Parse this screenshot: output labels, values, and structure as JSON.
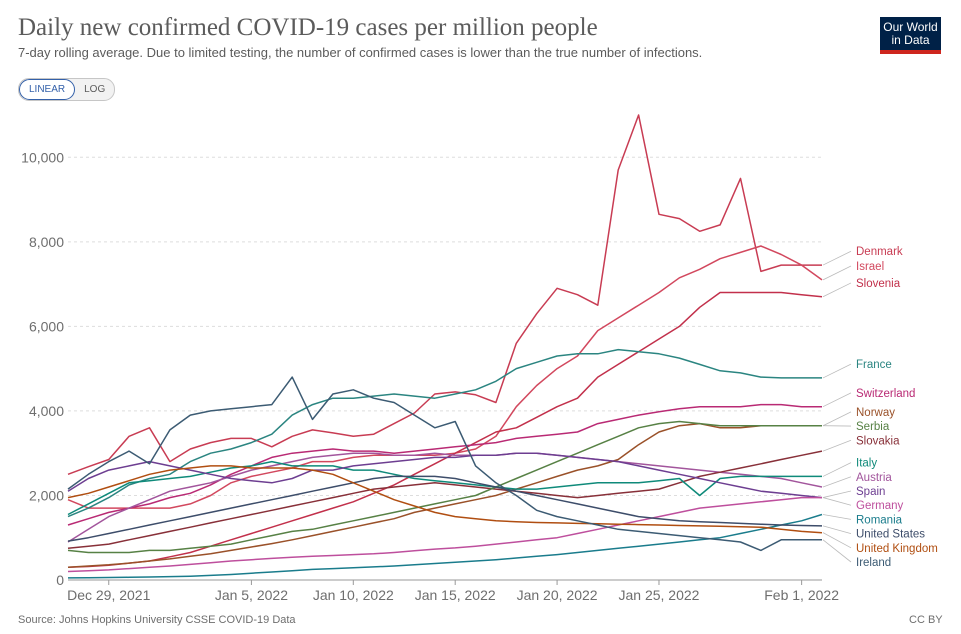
{
  "header": {
    "title": "Daily new confirmed COVID-19 cases per million people",
    "subtitle": "7-day rolling average. Due to limited testing, the number of confirmed cases is lower than the true number of infections.",
    "logo_line1": "Our World",
    "logo_line2": "in Data"
  },
  "scale_toggle": {
    "linear_label": "LINEAR",
    "log_label": "LOG",
    "selected": "LINEAR"
  },
  "footer": {
    "source": "Source: Johns Hopkins University CSSE COVID-19 Data",
    "license": "CC BY"
  },
  "chart_data": {
    "type": "line",
    "title": "Daily new confirmed COVID-19 cases per million people",
    "subtitle": "7-day rolling average. Due to limited testing, the number of confirmed cases is lower than the true number of infections.",
    "x_start": "Dec 27, 2021",
    "x_end": "Feb 2, 2022",
    "x": [
      "Dec 27, 2021",
      "Dec 28, 2021",
      "Dec 29, 2021",
      "Dec 30, 2021",
      "Dec 31, 2021",
      "Jan 1, 2022",
      "Jan 2, 2022",
      "Jan 3, 2022",
      "Jan 4, 2022",
      "Jan 5, 2022",
      "Jan 6, 2022",
      "Jan 7, 2022",
      "Jan 8, 2022",
      "Jan 9, 2022",
      "Jan 10, 2022",
      "Jan 11, 2022",
      "Jan 12, 2022",
      "Jan 13, 2022",
      "Jan 14, 2022",
      "Jan 15, 2022",
      "Jan 16, 2022",
      "Jan 17, 2022",
      "Jan 18, 2022",
      "Jan 19, 2022",
      "Jan 20, 2022",
      "Jan 21, 2022",
      "Jan 22, 2022",
      "Jan 23, 2022",
      "Jan 24, 2022",
      "Jan 25, 2022",
      "Jan 26, 2022",
      "Jan 27, 2022",
      "Jan 28, 2022",
      "Jan 29, 2022",
      "Jan 30, 2022",
      "Jan 31, 2022",
      "Feb 1, 2022",
      "Feb 2, 2022"
    ],
    "x_ticks": [
      "Dec 29, 2021",
      "Jan 5, 2022",
      "Jan 10, 2022",
      "Jan 15, 2022",
      "Jan 20, 2022",
      "Jan 25, 2022",
      "Feb 1, 2022"
    ],
    "y_ticks": [
      0,
      2000,
      4000,
      6000,
      8000,
      10000
    ],
    "y_tick_labels": [
      "0",
      "2,000",
      "4,000",
      "6,000",
      "8,000",
      "10,000"
    ],
    "ylim": [
      0,
      11000
    ],
    "grid": "horizontal dashed",
    "legend": "right-side end labels",
    "series": [
      {
        "name": "Denmark",
        "color": "#c83c53",
        "values": [
          2500,
          2680,
          2850,
          3400,
          3600,
          2800,
          3100,
          3250,
          3350,
          3350,
          3150,
          3400,
          3550,
          3480,
          3400,
          3450,
          3700,
          3950,
          4400,
          4450,
          4380,
          4200,
          5600,
          6300,
          6900,
          6750,
          6500,
          9700,
          11000,
          8650,
          8550,
          8250,
          8400,
          9500,
          7300,
          7450,
          7450,
          7450
        ]
      },
      {
        "name": "Israel",
        "color": "#d2485e",
        "values": [
          1900,
          1700,
          1700,
          1700,
          1700,
          1700,
          1800,
          2000,
          2300,
          2450,
          2550,
          2650,
          2800,
          2800,
          2900,
          2950,
          2950,
          2950,
          2950,
          3000,
          3100,
          3400,
          4100,
          4600,
          5000,
          5300,
          5900,
          6200,
          6500,
          6800,
          7150,
          7350,
          7600,
          7750,
          7900,
          7700,
          7450,
          7100
        ]
      },
      {
        "name": "Slovenia",
        "color": "#c2304b",
        "values": [
          300,
          320,
          350,
          400,
          450,
          550,
          650,
          800,
          950,
          1100,
          1250,
          1400,
          1550,
          1700,
          1850,
          2050,
          2250,
          2500,
          2750,
          3000,
          3250,
          3500,
          3600,
          3850,
          4100,
          4300,
          4800,
          5100,
          5400,
          5700,
          6000,
          6450,
          6800,
          6800,
          6800,
          6800,
          6750,
          6700
        ]
      },
      {
        "name": "France",
        "color": "#2b8581",
        "values": [
          1500,
          1700,
          1950,
          2250,
          2400,
          2500,
          2800,
          3000,
          3100,
          3250,
          3450,
          3900,
          4150,
          4300,
          4300,
          4350,
          4400,
          4350,
          4300,
          4400,
          4500,
          4700,
          5000,
          5150,
          5300,
          5350,
          5350,
          5450,
          5400,
          5350,
          5250,
          5100,
          4950,
          4900,
          4800,
          4780,
          4780,
          4780
        ]
      },
      {
        "name": "Switzerland",
        "color": "#b92a74",
        "values": [
          1300,
          1450,
          1600,
          1700,
          1800,
          1950,
          2050,
          2250,
          2500,
          2700,
          2900,
          3000,
          3050,
          3100,
          3050,
          3050,
          3000,
          3050,
          3100,
          3150,
          3200,
          3250,
          3350,
          3400,
          3450,
          3500,
          3700,
          3800,
          3900,
          3980,
          4050,
          4100,
          4100,
          4100,
          4150,
          4150,
          4100,
          4100
        ]
      },
      {
        "name": "Austria",
        "color": "#a2559c",
        "values": [
          900,
          1200,
          1500,
          1700,
          1900,
          2100,
          2200,
          2300,
          2450,
          2600,
          2700,
          2800,
          2900,
          2950,
          3000,
          3000,
          2950,
          2950,
          3000,
          2950,
          2950,
          2950,
          3000,
          3000,
          2950,
          2900,
          2850,
          2800,
          2750,
          2700,
          2650,
          2600,
          2550,
          2500,
          2450,
          2400,
          2300,
          2200
        ]
      },
      {
        "name": "Norway",
        "color": "#9a5129",
        "values": [
          300,
          330,
          360,
          400,
          450,
          500,
          560,
          620,
          700,
          780,
          860,
          950,
          1050,
          1150,
          1250,
          1350,
          1450,
          1600,
          1700,
          1800,
          1900,
          2000,
          2150,
          2300,
          2450,
          2600,
          2700,
          2850,
          3200,
          3500,
          3650,
          3700,
          3600,
          3600,
          3650,
          3650,
          3650,
          3650
        ]
      },
      {
        "name": "Slovakia",
        "color": "#883039",
        "values": [
          750,
          800,
          850,
          950,
          1050,
          1150,
          1250,
          1350,
          1450,
          1550,
          1650,
          1750,
          1850,
          1950,
          2050,
          2150,
          2200,
          2250,
          2300,
          2250,
          2200,
          2150,
          2100,
          2050,
          2000,
          1950,
          2000,
          2050,
          2100,
          2150,
          2300,
          2450,
          2550,
          2650,
          2750,
          2850,
          2950,
          3050
        ]
      },
      {
        "name": "Serbia",
        "color": "#578145",
        "values": [
          700,
          650,
          650,
          650,
          700,
          700,
          750,
          800,
          850,
          950,
          1050,
          1150,
          1200,
          1300,
          1400,
          1500,
          1600,
          1700,
          1800,
          1900,
          2000,
          2200,
          2400,
          2600,
          2800,
          3000,
          3200,
          3400,
          3600,
          3700,
          3750,
          3700,
          3650,
          3650,
          3650,
          3650,
          3650,
          3650
        ]
      },
      {
        "name": "Italy",
        "color": "#0f8a7a",
        "values": [
          1550,
          1800,
          2050,
          2300,
          2350,
          2400,
          2450,
          2550,
          2650,
          2700,
          2800,
          2700,
          2700,
          2700,
          2600,
          2600,
          2500,
          2400,
          2350,
          2300,
          2250,
          2200,
          2150,
          2150,
          2200,
          2250,
          2300,
          2300,
          2300,
          2350,
          2400,
          2000,
          2400,
          2450,
          2450,
          2450,
          2450,
          2450
        ]
      },
      {
        "name": "Spain",
        "color": "#6d3e91",
        "values": [
          2100,
          2400,
          2600,
          2700,
          2800,
          2700,
          2600,
          2500,
          2400,
          2350,
          2300,
          2400,
          2600,
          2600,
          2700,
          2750,
          2800,
          2850,
          2900,
          2900,
          2950,
          2950,
          3000,
          3000,
          2950,
          2900,
          2850,
          2800,
          2700,
          2600,
          2500,
          2400,
          2300,
          2200,
          2100,
          2050,
          2000,
          1950
        ]
      },
      {
        "name": "Germany",
        "color": "#be4f9d",
        "values": [
          200,
          220,
          240,
          270,
          300,
          330,
          370,
          410,
          450,
          480,
          510,
          540,
          560,
          580,
          600,
          620,
          650,
          690,
          730,
          760,
          800,
          850,
          900,
          950,
          1000,
          1100,
          1200,
          1300,
          1400,
          1500,
          1600,
          1700,
          1750,
          1800,
          1850,
          1900,
          1950,
          1950
        ]
      },
      {
        "name": "Romania",
        "color": "#1a7c8c",
        "values": [
          50,
          55,
          60,
          65,
          70,
          80,
          90,
          110,
          130,
          160,
          190,
          220,
          250,
          270,
          290,
          310,
          330,
          360,
          390,
          420,
          450,
          480,
          520,
          560,
          600,
          650,
          700,
          750,
          800,
          850,
          900,
          950,
          1000,
          1100,
          1200,
          1300,
          1400,
          1550
        ]
      },
      {
        "name": "United States",
        "color": "#3d4d6a",
        "values": [
          920,
          1000,
          1100,
          1200,
          1300,
          1400,
          1500,
          1600,
          1700,
          1800,
          1900,
          2000,
          2100,
          2200,
          2300,
          2400,
          2450,
          2450,
          2450,
          2400,
          2300,
          2200,
          2100,
          2000,
          1900,
          1800,
          1700,
          1600,
          1500,
          1450,
          1400,
          1380,
          1360,
          1340,
          1320,
          1300,
          1290,
          1280
        ]
      },
      {
        "name": "United Kingdom",
        "color": "#b04e11",
        "values": [
          1950,
          2050,
          2200,
          2350,
          2500,
          2600,
          2650,
          2700,
          2700,
          2650,
          2650,
          2650,
          2600,
          2500,
          2300,
          2100,
          1900,
          1750,
          1600,
          1500,
          1450,
          1400,
          1380,
          1360,
          1350,
          1340,
          1330,
          1320,
          1310,
          1300,
          1290,
          1280,
          1270,
          1260,
          1250,
          1200,
          1150,
          1120
        ]
      },
      {
        "name": "Ireland",
        "color": "#3c5b73",
        "values": [
          2150,
          2500,
          2800,
          3050,
          2750,
          3550,
          3900,
          4000,
          4050,
          4100,
          4150,
          4800,
          3800,
          4400,
          4500,
          4300,
          4200,
          3900,
          3600,
          3750,
          2700,
          2300,
          2000,
          1650,
          1500,
          1400,
          1300,
          1200,
          1150,
          1100,
          1050,
          1000,
          950,
          900,
          700,
          950,
          950,
          950
        ]
      }
    ]
  }
}
